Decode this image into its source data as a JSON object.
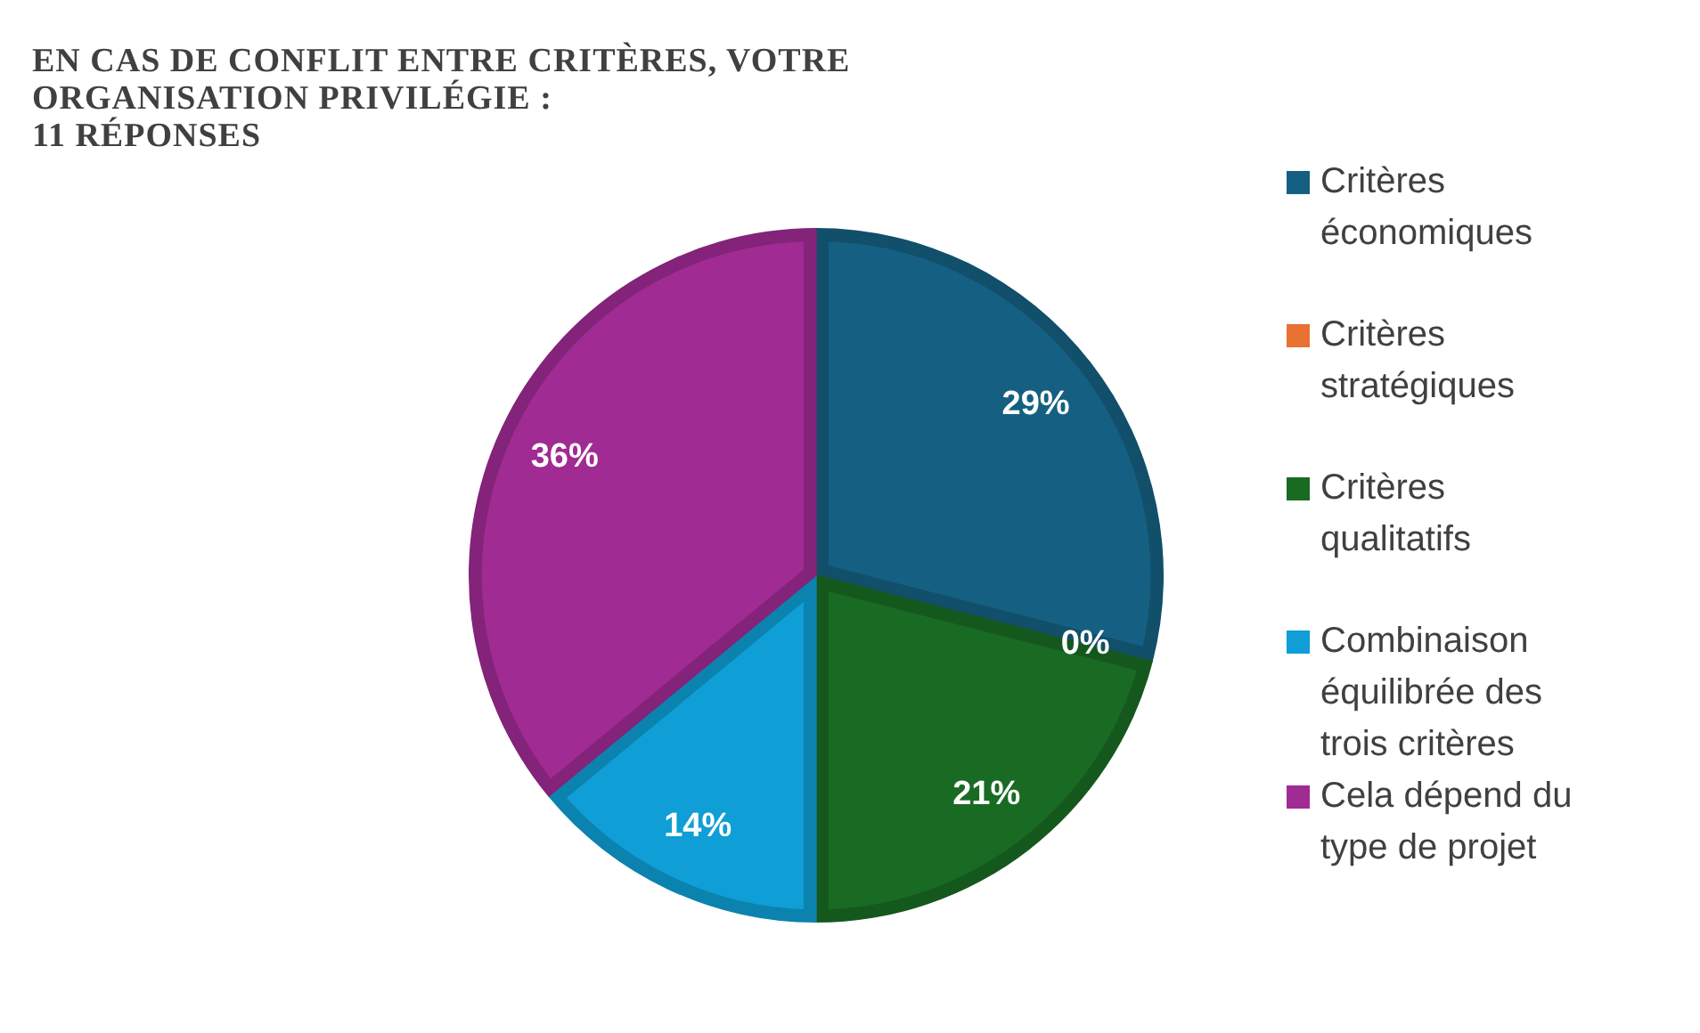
{
  "chart_data": {
    "type": "pie",
    "title": "EN CAS DE CONFLIT ENTRE CRITÈRES, VOTRE ORGANISATION PRIVILÉGIE :",
    "subtitle": "11 RÉPONSES",
    "categories": [
      "Critères économiques",
      "Critères stratégiques",
      "Critères qualitatifs",
      "Combinaison équilibrée des trois critères",
      "Cela dépend du type de projet"
    ],
    "values": [
      29,
      0,
      21,
      14,
      36
    ],
    "colors": [
      "#156082",
      "#e97132",
      "#196b24",
      "#0f9ed5",
      "#a02b93"
    ],
    "value_labels": [
      "29%",
      "0%",
      "21%",
      "14%",
      "36%"
    ],
    "legend": "right"
  }
}
